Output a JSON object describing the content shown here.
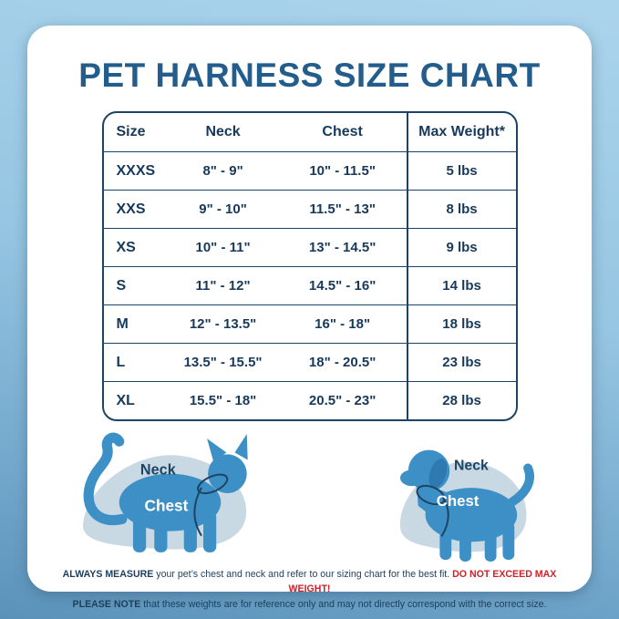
{
  "title": "PET HARNESS SIZE CHART",
  "table": {
    "headers": [
      "Size",
      "Neck",
      "Chest",
      "Max Weight*"
    ],
    "rows": [
      {
        "size": "XXXS",
        "neck": "8\" - 9\"",
        "chest": "10\" - 11.5\"",
        "max_weight": "5 lbs"
      },
      {
        "size": "XXS",
        "neck": "9\" - 10\"",
        "chest": "11.5\" - 13\"",
        "max_weight": "8 lbs"
      },
      {
        "size": "XS",
        "neck": "10\" - 11\"",
        "chest": "13\" - 14.5\"",
        "max_weight": "9 lbs"
      },
      {
        "size": "S",
        "neck": "11\" - 12\"",
        "chest": "14.5\" - 16\"",
        "max_weight": "14 lbs"
      },
      {
        "size": "M",
        "neck": "12\" - 13.5\"",
        "chest": "16\" - 18\"",
        "max_weight": "18 lbs"
      },
      {
        "size": "L",
        "neck": "13.5\" - 15.5\"",
        "chest": "18\" - 20.5\"",
        "max_weight": "23 lbs"
      },
      {
        "size": "XL",
        "neck": "15.5\" - 18\"",
        "chest": "20.5\" - 23\"",
        "max_weight": "28 lbs"
      }
    ]
  },
  "chart_data": {
    "type": "table",
    "title": "PET HARNESS SIZE CHART",
    "columns": [
      "Size",
      "Neck",
      "Chest",
      "Max Weight*"
    ],
    "rows": [
      [
        "XXXS",
        "8\" - 9\"",
        "10\" - 11.5\"",
        "5 lbs"
      ],
      [
        "XXS",
        "9\" - 10\"",
        "11.5\" - 13\"",
        "8 lbs"
      ],
      [
        "XS",
        "10\" - 11\"",
        "13\" - 14.5\"",
        "9 lbs"
      ],
      [
        "S",
        "11\" - 12\"",
        "14.5\" - 16\"",
        "14 lbs"
      ],
      [
        "M",
        "12\" - 13.5\"",
        "16\" - 18\"",
        "18 lbs"
      ],
      [
        "L",
        "13.5\" - 15.5\"",
        "18\" - 20.5\"",
        "23 lbs"
      ],
      [
        "XL",
        "15.5\" - 18\"",
        "20.5\" - 23\"",
        "28 lbs"
      ]
    ]
  },
  "illustrations": {
    "cat": {
      "neck_label": "Neck",
      "chest_label": "Chest"
    },
    "dog": {
      "neck_label": "Neck",
      "chest_label": "Chest"
    }
  },
  "footnote": {
    "measure_bold": "ALWAYS MEASURE",
    "measure_text": " your pet’s chest and neck and refer to our sizing chart for the best fit. ",
    "warning": "DO NOT EXCEED MAX WEIGHT!",
    "note_bold": "PLEASE NOTE",
    "note_text": " that these weights are for reference only and may not directly correspond with the correct size."
  },
  "colors": {
    "title_blue": "#235d8c",
    "navy": "#1d4463",
    "pet_blue": "#3d90c6",
    "blob": "#c9d9e4",
    "warning_red": "#cf2128",
    "background_top": "#abd4ec",
    "background_bottom": "#5b92b9"
  }
}
